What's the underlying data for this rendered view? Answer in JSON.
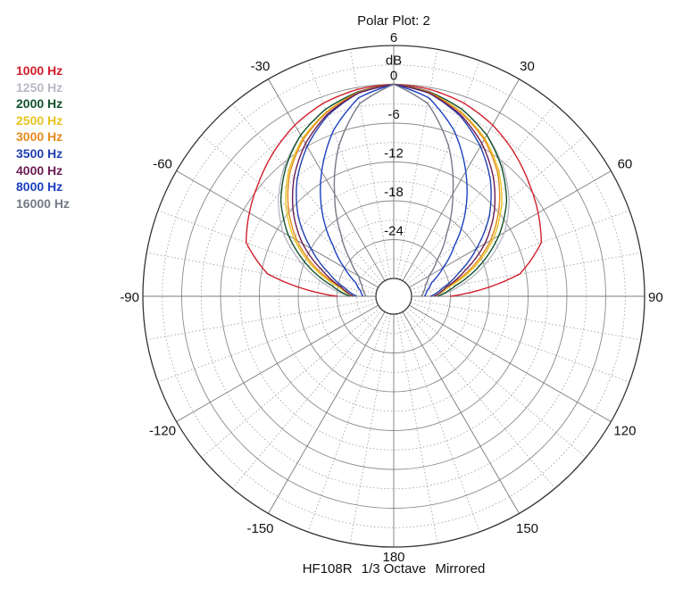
{
  "title": "Polar Plot: 2",
  "footer": {
    "model": "HF108R",
    "band": "1/3 Octave",
    "mode": "Mirrored"
  },
  "chart_data": {
    "type": "polar-line",
    "title": "Polar Plot: 2",
    "radial_unit": "dB",
    "radial_range": [
      -30,
      6
    ],
    "radial_tick_labels": [
      "6",
      "0",
      "-6",
      "-12",
      "-18",
      "-24"
    ],
    "angle_tick_labels": [
      {
        "angle": 0,
        "label": "0"
      },
      {
        "angle": 30,
        "label": "30"
      },
      {
        "angle": 60,
        "label": "60"
      },
      {
        "angle": 90,
        "label": "90"
      },
      {
        "angle": 120,
        "label": "120"
      },
      {
        "angle": 150,
        "label": "150"
      },
      {
        "angle": 180,
        "label": "180"
      },
      {
        "angle": -150,
        "label": "-150"
      },
      {
        "angle": -120,
        "label": "-120"
      },
      {
        "angle": -90,
        "label": "-90"
      },
      {
        "angle": -60,
        "label": "-60"
      },
      {
        "angle": -30,
        "label": "-30"
      }
    ],
    "grid": true,
    "legend_placement": "top-left",
    "mirrored": true,
    "series": [
      {
        "name": "1000 Hz",
        "color": "#d21f2b",
        "angles": [
          0,
          10,
          20,
          30,
          40,
          50,
          60,
          70,
          80,
          90
        ],
        "values": [
          0,
          -0.3,
          -1,
          -2.2,
          -3.8,
          -5.5,
          -7,
          -8.5,
          -13,
          -24
        ]
      },
      {
        "name": "1250 Hz",
        "color": "#b9b9c8",
        "angles": [
          0,
          10,
          20,
          30,
          40,
          50,
          60,
          70,
          80,
          90
        ],
        "values": [
          0,
          -0.7,
          -2,
          -4,
          -6.5,
          -9.5,
          -13,
          -17.5,
          -22,
          -26
        ]
      },
      {
        "name": "2000 Hz",
        "color": "#11522b",
        "angles": [
          0,
          10,
          20,
          30,
          40,
          50,
          60,
          70,
          80,
          90
        ],
        "values": [
          0,
          -0.7,
          -2,
          -4,
          -6.8,
          -10,
          -14,
          -18.5,
          -23,
          -26
        ]
      },
      {
        "name": "2500 Hz",
        "color": "#e5c421",
        "angles": [
          0,
          10,
          20,
          30,
          40,
          50,
          60,
          70,
          80,
          90
        ],
        "values": [
          0,
          -0.8,
          -2.4,
          -4.6,
          -7.5,
          -11,
          -15,
          -19.5,
          -24,
          -26.5
        ]
      },
      {
        "name": "3000 Hz",
        "color": "#e68a1c",
        "angles": [
          0,
          10,
          20,
          30,
          40,
          50,
          60,
          70,
          80,
          90
        ],
        "values": [
          0,
          -0.8,
          -2.5,
          -4.8,
          -7.8,
          -11.5,
          -15.5,
          -20,
          -24.5,
          -26.5
        ]
      },
      {
        "name": "3500 Hz",
        "color": "#1f3fb0",
        "angles": [
          0,
          10,
          20,
          30,
          40,
          50,
          60,
          70,
          80,
          90
        ],
        "values": [
          0,
          -0.9,
          -3,
          -6,
          -9.5,
          -13.5,
          -18,
          -22,
          -25,
          -27
        ]
      },
      {
        "name": "4000 Hz",
        "color": "#6a1c52",
        "angles": [
          0,
          10,
          20,
          30,
          40,
          50,
          60,
          70,
          80,
          90
        ],
        "values": [
          0,
          -0.9,
          -2.8,
          -5.5,
          -8.8,
          -12.5,
          -16.5,
          -21,
          -24.5,
          -26.5
        ]
      },
      {
        "name": "8000 Hz",
        "color": "#1b3fc0",
        "angles": [
          0,
          10,
          20,
          30,
          40,
          50,
          60,
          70,
          80,
          90
        ],
        "values": [
          0,
          -1.6,
          -5.5,
          -10.5,
          -15.5,
          -20.5,
          -24,
          -26.5,
          -27.5,
          -28
        ]
      },
      {
        "name": "16000 Hz",
        "color": "#757a86",
        "angles": [
          0,
          10,
          20,
          30,
          40,
          50,
          60,
          70,
          80,
          90
        ],
        "values": [
          0,
          -2.5,
          -8,
          -14.5,
          -20,
          -24,
          -26.5,
          -27.5,
          -28,
          -28.5
        ]
      }
    ]
  }
}
